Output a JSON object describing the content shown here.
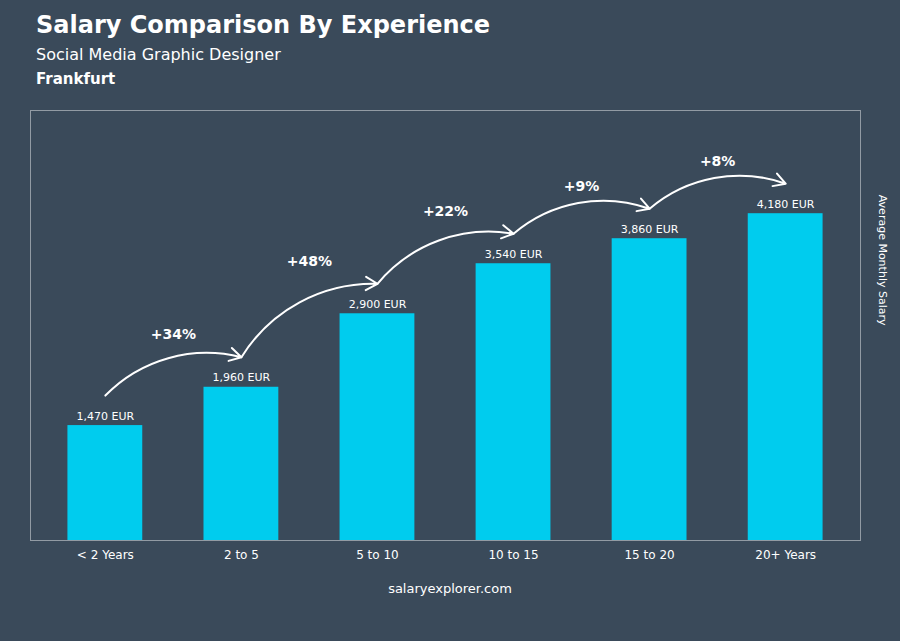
{
  "chart_data": {
    "type": "bar",
    "title": "Salary Comparison By Experience",
    "subtitle": "Social Media Graphic Designer",
    "city": "Frankfurt",
    "categories": [
      "< 2 Years",
      "2 to 5",
      "5 to 10",
      "10 to 15",
      "15 to 20",
      "20+ Years"
    ],
    "values": [
      1470,
      1960,
      2900,
      3540,
      3860,
      4180
    ],
    "value_labels": [
      "1,470 EUR",
      "1,960 EUR",
      "2,900 EUR",
      "3,540 EUR",
      "3,860 EUR",
      "4,180 EUR"
    ],
    "data_labels": true,
    "annotations": [
      "+34%",
      "+48%",
      "+22%",
      "+9%",
      "+8%"
    ],
    "ylabel": "Average Monthly Salary",
    "color": "#00CCEE",
    "ylim": [
      0,
      5500
    ],
    "tick_labels": "x",
    "grid": false,
    "caption": "salaryexplorer.com"
  }
}
